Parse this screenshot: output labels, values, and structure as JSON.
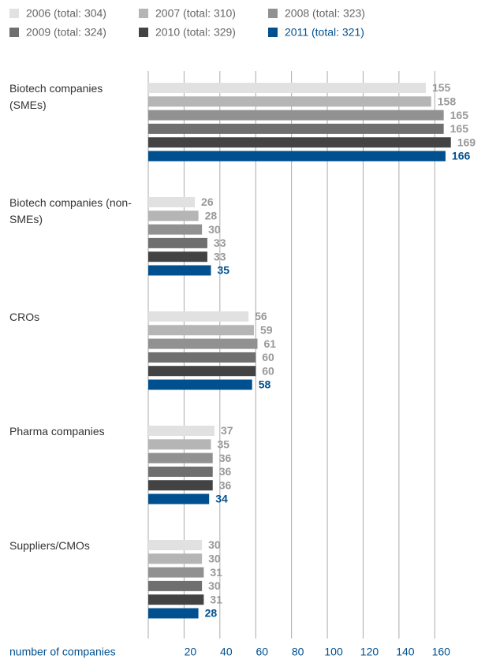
{
  "chart_data": {
    "type": "barh",
    "categories": [
      "Biotech companies (SMEs)",
      "Biotech companies (non-SMEs)",
      "CROs",
      "Pharma companies",
      "Suppliers/CMOs"
    ],
    "series": [
      {
        "name": "2006 (total: 304)",
        "color": "#e1e1e1",
        "values": [
          155,
          26,
          56,
          37,
          30
        ]
      },
      {
        "name": "2007 (total: 310)",
        "color": "#b5b5b5",
        "values": [
          158,
          28,
          59,
          35,
          30
        ]
      },
      {
        "name": "2008 (total: 323)",
        "color": "#919191",
        "values": [
          165,
          30,
          61,
          36,
          31
        ]
      },
      {
        "name": "2009 (total: 324)",
        "color": "#6f6f6f",
        "values": [
          165,
          33,
          60,
          36,
          30
        ]
      },
      {
        "name": "2010 (total: 329)",
        "color": "#434343",
        "values": [
          169,
          33,
          60,
          36,
          31
        ]
      },
      {
        "name": "2011 (total: 321)",
        "color": "#00508f",
        "values": [
          166,
          35,
          58,
          34,
          28
        ]
      }
    ],
    "xlabel": "number of companies",
    "xlim": [
      0,
      170
    ],
    "xticks": [
      20,
      40,
      60,
      80,
      100,
      120,
      140,
      160
    ],
    "grid": true
  }
}
